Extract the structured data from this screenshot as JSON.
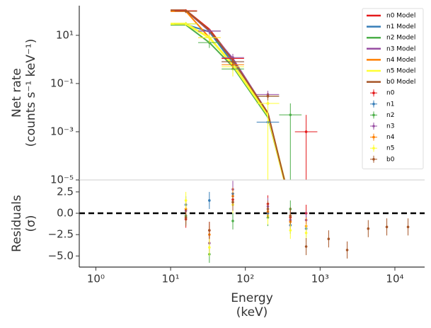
{
  "chart_data": [
    {
      "type": "line",
      "ylabel": [
        "Net rate",
        "(counts s⁻¹ keV⁻¹)"
      ],
      "log_x": true,
      "log_y": true,
      "xlim": [
        0.6,
        25000
      ],
      "ylim": [
        1e-05,
        170
      ],
      "yticks": [
        {
          "value": 1e-05,
          "label": "10⁻⁵"
        },
        {
          "value": 0.001,
          "label": "10⁻³"
        },
        {
          "value": 0.1,
          "label": "10⁻¹"
        },
        {
          "value": 10,
          "label": "10¹"
        }
      ],
      "legend": "upper right",
      "model_x": [
        10,
        16,
        33,
        68,
        200,
        400
      ],
      "models": [
        {
          "name": "n0 Model",
          "color": "#e41a1c",
          "values": [
            110,
            110,
            18,
            1.0,
            0.006,
            1e-06
          ]
        },
        {
          "name": "n1 Model",
          "color": "#377eb8",
          "values": [
            28,
            28,
            14,
            0.7,
            0.004,
            1e-06
          ]
        },
        {
          "name": "n2 Model",
          "color": "#4daf4a",
          "values": [
            27,
            27,
            5,
            0.5,
            0.004,
            1e-06
          ]
        },
        {
          "name": "n3 Model",
          "color": "#984ea3",
          "values": [
            105,
            105,
            15,
            1.1,
            0.006,
            1e-06
          ]
        },
        {
          "name": "n4 Model",
          "color": "#ff7f00",
          "values": [
            100,
            100,
            8,
            0.6,
            0.005,
            1e-06
          ]
        },
        {
          "name": "n5 Model",
          "color": "#ffff33",
          "values": [
            30,
            30,
            8,
            0.6,
            0.005,
            1e-06
          ]
        },
        {
          "name": "b0 Model",
          "color": "#a65628",
          "values": [
            110,
            110,
            16,
            0.9,
            0.006,
            1e-06
          ]
        }
      ],
      "series": [
        {
          "name": "n0",
          "color": "#e41a1c",
          "x": [
            16,
            33,
            68,
            200,
            400,
            650
          ],
          "values": [
            105,
            15,
            1.1,
            0.03,
            null,
            0.001
          ],
          "errors": [
            15,
            4,
            0.5,
            0.01,
            null,
            0.004
          ]
        },
        {
          "name": "n1",
          "color": "#377eb8",
          "x": [
            16,
            33,
            68,
            200,
            400,
            650
          ],
          "values": [
            30,
            15,
            0.8,
            0.0025,
            null,
            null
          ],
          "errors": [
            5,
            3,
            0.3,
            0.002,
            null,
            null
          ]
        },
        {
          "name": "n2",
          "color": "#4daf4a",
          "x": [
            16,
            33,
            68,
            200,
            400,
            650
          ],
          "values": [
            30,
            5,
            0.4,
            0.03,
            0.005,
            null
          ],
          "errors": [
            5,
            2,
            0.2,
            0.01,
            0.01,
            null
          ]
        },
        {
          "name": "n3",
          "color": "#984ea3",
          "x": [
            16,
            33,
            68,
            200,
            400,
            650
          ],
          "values": [
            100,
            15,
            1.2,
            0.035,
            null,
            null
          ],
          "errors": [
            15,
            4,
            0.5,
            0.015,
            null,
            null
          ]
        },
        {
          "name": "n4",
          "color": "#ff7f00",
          "x": [
            16,
            33,
            68,
            200,
            400,
            650
          ],
          "values": [
            100,
            8,
            0.6,
            0.015,
            null,
            null
          ],
          "errors": [
            15,
            3,
            0.3,
            0.01,
            null,
            null
          ]
        },
        {
          "name": "n5",
          "color": "#ffff33",
          "x": [
            16,
            33,
            68,
            200,
            400,
            650
          ],
          "values": [
            30,
            8,
            0.5,
            0.015,
            null,
            null
          ],
          "errors": [
            6,
            3,
            0.3,
            0.015,
            null,
            null
          ]
        },
        {
          "name": "b0",
          "color": "#a65628",
          "x": [
            16,
            33,
            68,
            200,
            400,
            650
          ],
          "values": [
            100,
            null,
            0.8,
            0.03,
            null,
            null
          ],
          "errors": [
            15,
            null,
            0.4,
            0.01,
            null,
            null
          ]
        }
      ]
    },
    {
      "type": "scatter",
      "ylabel": [
        "Residuals",
        "(σ)"
      ],
      "xlabel": [
        "Energy",
        "(keV)"
      ],
      "log_x": true,
      "xlim": [
        0.6,
        25000
      ],
      "ylim": [
        -6.3,
        3.9
      ],
      "xticks": [
        {
          "value": 1,
          "label": "10⁰"
        },
        {
          "value": 10,
          "label": "10¹"
        },
        {
          "value": 100,
          "label": "10²"
        },
        {
          "value": 1000,
          "label": "10³"
        },
        {
          "value": 10000,
          "label": "10⁴"
        }
      ],
      "yticks": [
        2.5,
        {
          "value": 0,
          "label": "0.0"
        },
        {
          "value": -2.5,
          "label": "−2.5"
        },
        {
          "value": -5,
          "label": "−5.0"
        }
      ],
      "hline": 0,
      "series": [
        {
          "color": "#e41a1c",
          "x": [
            16,
            33,
            68,
            200,
            400,
            650
          ],
          "values": [
            -0.7,
            -2.0,
            1.6,
            1.1,
            -0.5,
            0.0
          ],
          "errors": [
            1,
            1,
            1,
            1,
            1,
            1
          ]
        },
        {
          "color": "#377eb8",
          "x": [
            16,
            33,
            68,
            200,
            400,
            650
          ],
          "values": [
            1.0,
            1.5,
            2.3,
            0.0,
            -1.4,
            -1.8
          ],
          "errors": [
            1,
            1,
            1,
            1,
            1,
            1
          ]
        },
        {
          "color": "#4daf4a",
          "x": [
            16,
            33,
            68,
            200,
            400,
            650
          ],
          "values": [
            -0.3,
            -4.8,
            -0.9,
            -0.5,
            0.5,
            null
          ],
          "errors": [
            1,
            1,
            1,
            1,
            1,
            null
          ]
        },
        {
          "color": "#984ea3",
          "x": [
            16,
            33,
            68,
            200,
            400,
            650
          ],
          "values": [
            0.3,
            -3.5,
            2.8,
            0.8,
            -0.8,
            -0.8
          ],
          "errors": [
            1,
            1,
            1,
            1,
            1,
            1
          ]
        },
        {
          "color": "#ff7f00",
          "x": [
            16,
            33,
            68,
            200,
            400,
            650
          ],
          "values": [
            0.5,
            -2.5,
            2.0,
            0.2,
            -1.0,
            -1.5
          ],
          "errors": [
            1,
            1,
            1,
            1,
            1,
            1
          ]
        },
        {
          "color": "#ffff33",
          "x": [
            16,
            33,
            68,
            200,
            400,
            650
          ],
          "values": [
            1.5,
            -4.0,
            1.0,
            -0.3,
            -2.0,
            -2.3
          ],
          "errors": [
            1,
            1,
            1,
            1,
            1,
            1
          ]
        },
        {
          "color": "#a65628",
          "x": [
            16,
            33,
            68,
            200,
            400,
            650,
            1300,
            2300,
            4400,
            7800,
            15000
          ],
          "values": [
            -0.5,
            -2.0,
            1.3,
            0.5,
            -0.3,
            -3.9,
            -3.0,
            -4.3,
            -1.8,
            -1.6,
            -1.6
          ],
          "errors": [
            1,
            1,
            1,
            1,
            1,
            1,
            1,
            1,
            1,
            1,
            1
          ]
        }
      ]
    }
  ]
}
